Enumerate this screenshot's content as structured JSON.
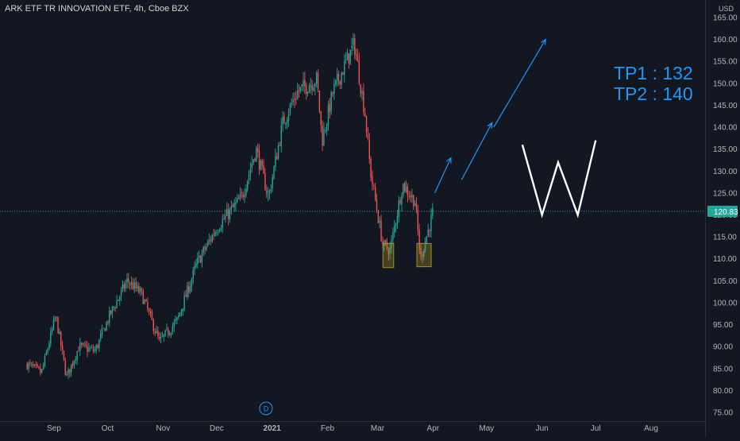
{
  "header": {
    "title": "ARK ETF TR INNOVATION ETF, 4h, Cboe BZX"
  },
  "currency": "USD",
  "last_price": "120.83",
  "annotations": {
    "tp1": "TP1 : 132",
    "tp2": "TP2 : 140",
    "event_marker": "D"
  },
  "colors": {
    "up": "#26a69a",
    "down": "#ef5350",
    "background": "#131722",
    "projection": "#2196f3",
    "pattern": "#ffffff",
    "last_price": "#26a69a",
    "box": "#a0932c"
  },
  "chart_data": {
    "type": "candlestick",
    "title": "ARK ETF TR INNOVATION ETF, 4h, Cboe BZX",
    "ylabel": "USD",
    "ylim": [
      75,
      165
    ],
    "yticks": [
      75,
      80,
      85,
      90,
      95,
      100,
      105,
      110,
      115,
      120,
      125,
      130,
      135,
      140,
      145,
      150,
      155,
      160,
      165
    ],
    "x_ticks": [
      "Sep",
      "Oct",
      "Nov",
      "Dec",
      "2021",
      "Feb",
      "Mar",
      "Apr",
      "May",
      "Jun",
      "Jul",
      "Aug"
    ],
    "price_path": [
      {
        "date": "2020-08-17",
        "close": 86
      },
      {
        "date": "2020-08-25",
        "close": 84
      },
      {
        "date": "2020-09-02",
        "close": 97
      },
      {
        "date": "2020-09-08",
        "close": 83
      },
      {
        "date": "2020-09-15",
        "close": 90
      },
      {
        "date": "2020-09-24",
        "close": 89
      },
      {
        "date": "2020-10-02",
        "close": 97
      },
      {
        "date": "2020-10-12",
        "close": 105
      },
      {
        "date": "2020-10-20",
        "close": 102
      },
      {
        "date": "2020-10-30",
        "close": 91
      },
      {
        "date": "2020-11-09",
        "close": 96
      },
      {
        "date": "2020-11-20",
        "close": 109
      },
      {
        "date": "2020-12-01",
        "close": 117
      },
      {
        "date": "2020-12-15",
        "close": 124
      },
      {
        "date": "2020-12-23",
        "close": 135
      },
      {
        "date": "2020-12-30",
        "close": 124
      },
      {
        "date": "2021-01-07",
        "close": 141
      },
      {
        "date": "2021-01-15",
        "close": 148
      },
      {
        "date": "2021-01-26",
        "close": 151
      },
      {
        "date": "2021-01-29",
        "close": 137
      },
      {
        "date": "2021-02-04",
        "close": 148
      },
      {
        "date": "2021-02-16",
        "close": 159
      },
      {
        "date": "2021-02-22",
        "close": 143
      },
      {
        "date": "2021-02-25",
        "close": 130
      },
      {
        "date": "2021-03-04",
        "close": 113
      },
      {
        "date": "2021-03-08",
        "close": 112
      },
      {
        "date": "2021-03-15",
        "close": 127
      },
      {
        "date": "2021-03-22",
        "close": 123
      },
      {
        "date": "2021-03-25",
        "close": 110
      },
      {
        "date": "2021-03-31",
        "close": 119
      },
      {
        "date": "2021-04-01",
        "close": 120.83
      }
    ],
    "support_boxes": [
      {
        "date_start": "2021-03-04",
        "date_end": "2021-03-10",
        "price_low": 108,
        "price_high": 113.5
      },
      {
        "date_start": "2021-03-23",
        "date_end": "2021-03-31",
        "price_low": 108.2,
        "price_high": 113.5
      }
    ],
    "projection_path": [
      {
        "date": "2021-04-02",
        "close": 125
      },
      {
        "date": "2021-04-11",
        "close": 133
      },
      {
        "date": "2021-04-17",
        "close": 128
      },
      {
        "date": "2021-05-04",
        "close": 141
      },
      {
        "date": "2021-05-05",
        "close": 140
      },
      {
        "date": "2021-06-03",
        "close": 160
      }
    ],
    "w_pattern": [
      {
        "date": "2021-05-21",
        "close": 136
      },
      {
        "date": "2021-06-01",
        "close": 120
      },
      {
        "date": "2021-06-10",
        "close": 132
      },
      {
        "date": "2021-06-21",
        "close": 120
      },
      {
        "date": "2021-07-01",
        "close": 137
      }
    ],
    "last_price": 120.83,
    "grid": false,
    "legend": "none"
  }
}
